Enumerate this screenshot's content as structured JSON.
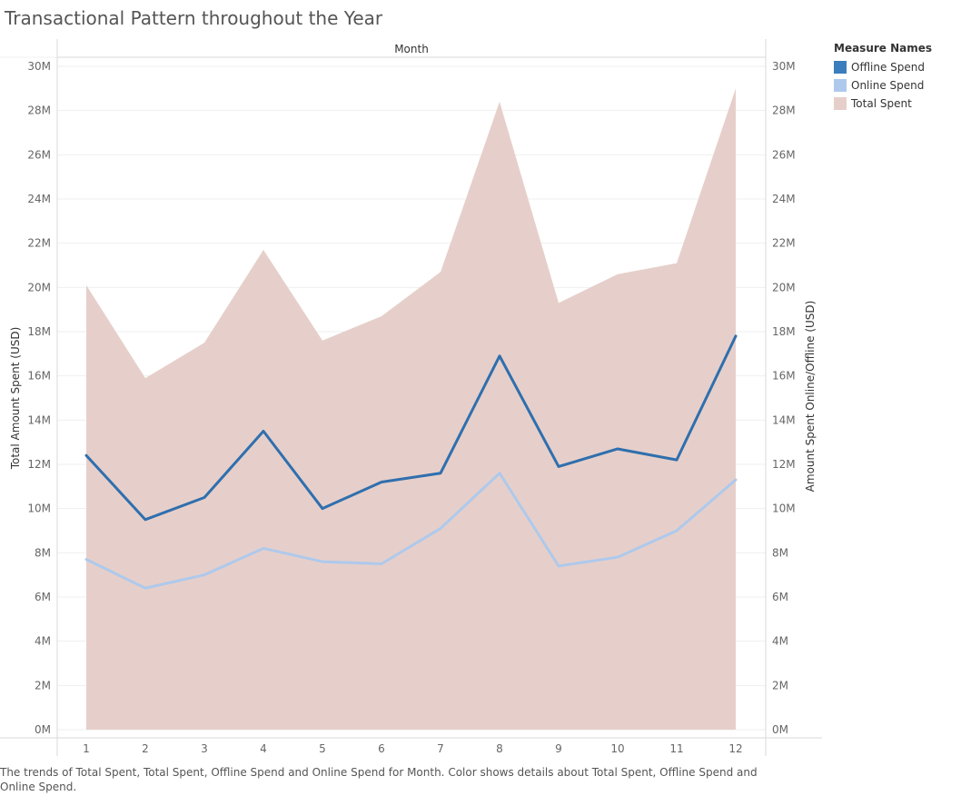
{
  "title": "Transactional Pattern throughout the Year",
  "caption": "The trends of Total Spent, Total Spent, Offline Spend and Online Spend for Month.  Color shows details about Total Spent, Offline Spend and Online Spend.",
  "legend": {
    "title": "Measure Names",
    "items": [
      {
        "label": "Offline Spend",
        "color": "#3b7dbd"
      },
      {
        "label": "Online Spend",
        "color": "#aec9ec"
      },
      {
        "label": "Total Spent",
        "color": "#e6cfca"
      }
    ]
  },
  "chart_data": {
    "type": "area",
    "title": "Transactional Pattern throughout the Year",
    "xlabel": "Month",
    "ylabel": "Total Amount Spent (USD)",
    "ylabel_right": "Amount Spent Online/Offline (USD)",
    "categories": [
      "1",
      "2",
      "3",
      "4",
      "5",
      "6",
      "7",
      "8",
      "9",
      "10",
      "11",
      "12"
    ],
    "ylim": [
      0,
      30000000
    ],
    "yticks": [
      0,
      2000000,
      4000000,
      6000000,
      8000000,
      10000000,
      12000000,
      14000000,
      16000000,
      18000000,
      20000000,
      22000000,
      24000000,
      26000000,
      28000000,
      30000000
    ],
    "ytick_labels": [
      "0M",
      "2M",
      "4M",
      "6M",
      "8M",
      "10M",
      "12M",
      "14M",
      "16M",
      "18M",
      "20M",
      "22M",
      "24M",
      "26M",
      "28M",
      "30M"
    ],
    "grid": true,
    "legend_position": "top-right",
    "series": [
      {
        "name": "Total Spent",
        "type": "area",
        "color": "#e6cfca",
        "values": [
          20100000,
          15900000,
          17500000,
          21700000,
          17600000,
          18700000,
          20700000,
          28400000,
          19300000,
          20600000,
          21100000,
          29000000
        ]
      },
      {
        "name": "Offline Spend",
        "type": "line",
        "color": "#2f6fae",
        "values": [
          12400000,
          9500000,
          10500000,
          13500000,
          10000000,
          11200000,
          11600000,
          16900000,
          11900000,
          12700000,
          12200000,
          17800000
        ]
      },
      {
        "name": "Online Spend",
        "type": "line",
        "color": "#aec9ec",
        "values": [
          7700000,
          6400000,
          7000000,
          8200000,
          7600000,
          7500000,
          9100000,
          11600000,
          7400000,
          7800000,
          9000000,
          11300000
        ]
      }
    ]
  }
}
